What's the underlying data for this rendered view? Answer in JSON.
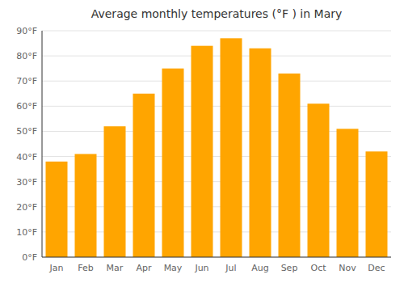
{
  "chart_data": {
    "type": "bar",
    "title": "Average monthly temperatures (°F ) in Mary",
    "categories": [
      "Jan",
      "Feb",
      "Mar",
      "Apr",
      "May",
      "Jun",
      "Jul",
      "Aug",
      "Sep",
      "Oct",
      "Nov",
      "Dec"
    ],
    "values": [
      38,
      41,
      52,
      65,
      75,
      84,
      87,
      83,
      73,
      61,
      51,
      42
    ],
    "color": "#FFA500",
    "ylim": [
      0,
      90
    ],
    "yticks": [
      {
        "value": 0,
        "label": "0°F"
      },
      {
        "value": 10,
        "label": "10°F"
      },
      {
        "value": 20,
        "label": "20°F"
      },
      {
        "value": 30,
        "label": "30°F"
      },
      {
        "value": 40,
        "label": "40°F"
      },
      {
        "value": 50,
        "label": "50°F"
      },
      {
        "value": 60,
        "label": "60°F"
      },
      {
        "value": 70,
        "label": "70°F"
      },
      {
        "value": 80,
        "label": "80°F"
      },
      {
        "value": 90,
        "label": "90°F"
      }
    ],
    "grid": true
  }
}
